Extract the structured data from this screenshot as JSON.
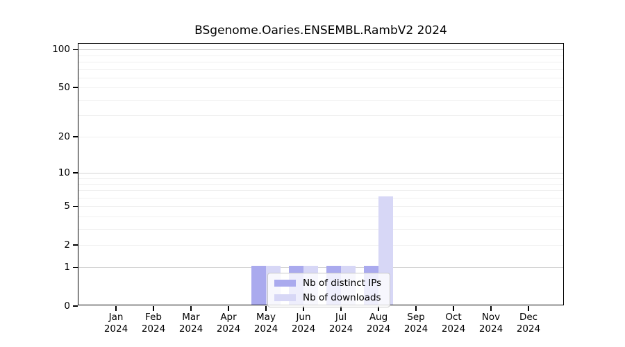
{
  "title": "BSgenome.Oaries.ENSEMBL.RambV2 2024",
  "chart_data": {
    "type": "bar",
    "title": "BSgenome.Oaries.ENSEMBL.RambV2 2024",
    "categories": [
      "Jan",
      "Feb",
      "Mar",
      "Apr",
      "May",
      "Jun",
      "Jul",
      "Aug",
      "Sep",
      "Oct",
      "Nov",
      "Dec"
    ],
    "x_tick_year": "2024",
    "series": [
      {
        "name": "Nb of distinct IPs",
        "color": "#aaaaee",
        "values": [
          0,
          0,
          0,
          0,
          1,
          1,
          1,
          1,
          0,
          0,
          0,
          0
        ]
      },
      {
        "name": "Nb of downloads",
        "color": "#d7d7f6",
        "values": [
          0,
          0,
          0,
          0,
          1,
          1,
          1,
          6,
          0,
          0,
          0,
          0
        ]
      }
    ],
    "yscale": "log1p",
    "ylim": [
      0,
      111
    ],
    "yticks": [
      0,
      1,
      2,
      5,
      10,
      20,
      50,
      100
    ],
    "grid": true,
    "grid_values_minor": [
      2,
      3,
      4,
      5,
      6,
      7,
      8,
      9,
      20,
      30,
      40,
      50,
      60,
      70,
      80,
      90
    ],
    "grid_values_major": [
      1,
      10,
      100
    ],
    "legend_position": "inside-bottom-center"
  },
  "legend": {
    "items": [
      {
        "label": "Nb of distinct IPs",
        "color": "#aaaaee"
      },
      {
        "label": "Nb of downloads",
        "color": "#d7d7f6"
      }
    ]
  }
}
